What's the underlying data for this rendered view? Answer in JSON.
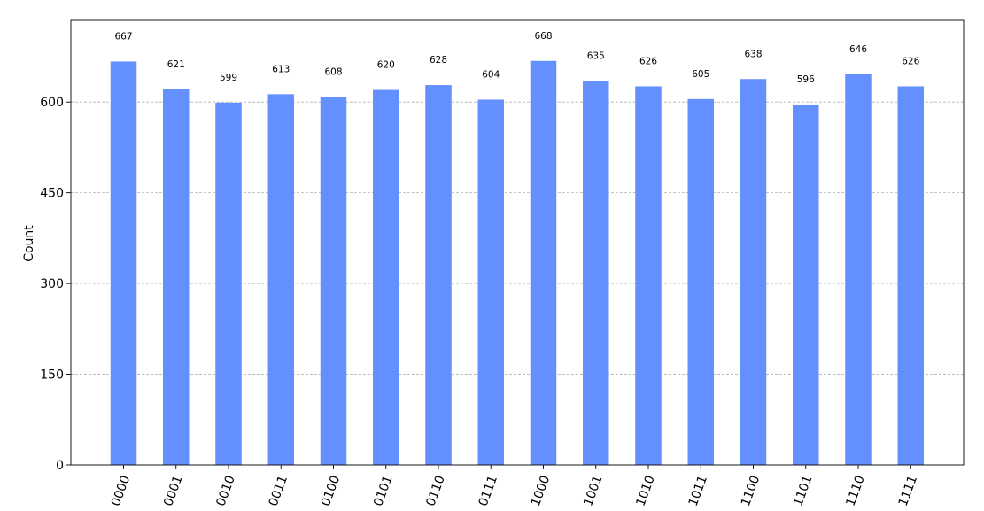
{
  "chart_data": {
    "type": "bar",
    "categories": [
      "0000",
      "0001",
      "0010",
      "0011",
      "0100",
      "0101",
      "0110",
      "0111",
      "1000",
      "1001",
      "1010",
      "1011",
      "1100",
      "1101",
      "1110",
      "1111"
    ],
    "values": [
      667,
      621,
      599,
      613,
      608,
      620,
      628,
      604,
      668,
      635,
      626,
      605,
      638,
      596,
      646,
      626
    ],
    "xlabel": "",
    "ylabel": "Count",
    "ylim": [
      0,
      735
    ],
    "yticks": [
      0,
      150,
      300,
      450,
      600
    ],
    "ytick_labels": [
      "0",
      "150",
      "300",
      "450",
      "600"
    ],
    "grid": "horizontal dashed",
    "bar_color": "#648fff",
    "show_data_labels": true
  }
}
